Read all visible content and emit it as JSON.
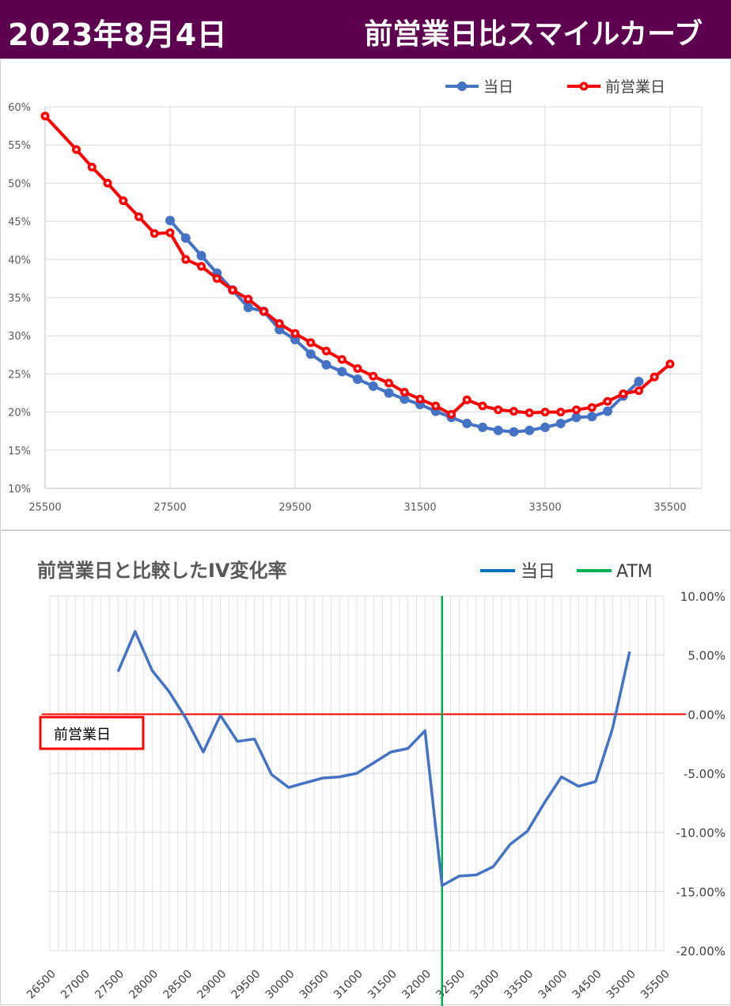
{
  "header": {
    "date": "2023年8月4日",
    "title": "前営業日比スマイルカーブ"
  },
  "colors": {
    "banner_bg": "#5d0050",
    "today": "#4472c4",
    "prev_day": "#ff0000",
    "atm": "#00b050",
    "zero_line": "#ff0000",
    "grid": "#d9d9d9"
  },
  "chart_data": [
    {
      "type": "line",
      "title": "",
      "xlabel": "",
      "ylabel": "",
      "xlim": [
        25500,
        35500
      ],
      "ylim": [
        10,
        60
      ],
      "y_unit": "%",
      "x_ticks": [
        "25500",
        "27500",
        "29500",
        "31500",
        "33500",
        "35500"
      ],
      "y_ticks": [
        "10%",
        "15%",
        "20%",
        "25%",
        "30%",
        "35%",
        "40%",
        "45%",
        "50%",
        "55%",
        "60%"
      ],
      "grid": "on",
      "legend_position": "top-right",
      "series": [
        {
          "name": "当日",
          "color": "#4472c4",
          "x": [
            27500,
            27750,
            28000,
            28250,
            28500,
            28750,
            29000,
            29250,
            29500,
            29750,
            30000,
            30250,
            30500,
            30750,
            31000,
            31250,
            31500,
            31750,
            32000,
            32250,
            32500,
            32750,
            33000,
            33250,
            33500,
            33750,
            34000,
            34250,
            34500,
            34750,
            35000
          ],
          "y": [
            45.1,
            42.8,
            40.5,
            38.2,
            36.0,
            33.7,
            33.2,
            30.8,
            29.5,
            27.6,
            26.2,
            25.3,
            24.3,
            23.4,
            22.5,
            21.7,
            21.0,
            20.1,
            19.3,
            18.5,
            18.0,
            17.6,
            17.4,
            17.6,
            18.0,
            18.5,
            19.3,
            19.4,
            20.1,
            22.1,
            24.0
          ]
        },
        {
          "name": "前営業日",
          "color": "#ff0000",
          "x": [
            25500,
            26000,
            26250,
            26500,
            26750,
            27000,
            27250,
            27500,
            27750,
            28000,
            28250,
            28500,
            28750,
            29000,
            29250,
            29500,
            29750,
            30000,
            30250,
            30500,
            30750,
            31000,
            31250,
            31500,
            31750,
            32000,
            32250,
            32500,
            32750,
            33000,
            33250,
            33500,
            33750,
            34000,
            34250,
            34500,
            34750,
            35000,
            35250,
            35500
          ],
          "y": [
            58.8,
            54.4,
            52.1,
            50.0,
            47.7,
            45.6,
            43.4,
            43.5,
            40.0,
            39.1,
            37.5,
            36.0,
            34.8,
            33.2,
            31.6,
            30.3,
            29.1,
            28.0,
            26.9,
            25.7,
            24.7,
            23.8,
            22.6,
            21.7,
            20.8,
            19.7,
            21.6,
            20.8,
            20.3,
            20.1,
            19.9,
            20.0,
            20.0,
            20.3,
            20.6,
            21.4,
            22.4,
            22.8,
            24.6,
            26.3
          ]
        }
      ]
    },
    {
      "type": "line",
      "title": "前営業日と比較したIV変化率",
      "xlabel": "",
      "ylabel": "",
      "xlim": [
        26500,
        35500
      ],
      "ylim": [
        -20,
        10
      ],
      "y_axis_side": "right",
      "x_ticks": [
        "26500",
        "27000",
        "27500",
        "28000",
        "28500",
        "29000",
        "29500",
        "30000",
        "30500",
        "31000",
        "31500",
        "32000",
        "32500",
        "33000",
        "33500",
        "34000",
        "34500",
        "35000",
        "35500"
      ],
      "y_ticks": [
        "-20.00%",
        "-15.00%",
        "-10.00%",
        "-5.00%",
        "0.00%",
        "5.00%",
        "10.00%"
      ],
      "grid": "on",
      "legend_position": "top-right",
      "reference_line_label": "前営業日",
      "atm_strike": 32250,
      "series": [
        {
          "name": "当日",
          "color": "#4472c4",
          "x": [
            27500,
            27750,
            28000,
            28250,
            28500,
            28750,
            29000,
            29250,
            29500,
            29750,
            30000,
            30250,
            30500,
            30750,
            31000,
            31250,
            31500,
            31750,
            32000,
            32250,
            32500,
            32750,
            33000,
            33250,
            33500,
            33750,
            34000,
            34250,
            34500,
            34750,
            35000
          ],
          "y": [
            3.6,
            7.0,
            3.7,
            1.9,
            -0.4,
            -3.2,
            -0.1,
            -2.3,
            -2.1,
            -5.1,
            -6.2,
            -5.8,
            -5.4,
            -5.3,
            -5.0,
            -4.1,
            -3.2,
            -2.9,
            -1.4,
            -14.5,
            -13.7,
            -13.6,
            -12.9,
            -11.0,
            -9.9,
            -7.5,
            -5.3,
            -6.1,
            -5.7,
            -1.2,
            5.3
          ]
        },
        {
          "name": "ATM",
          "color": "#00b050",
          "x": [
            32250,
            32250
          ],
          "y": [
            -20,
            10
          ]
        }
      ]
    }
  ]
}
